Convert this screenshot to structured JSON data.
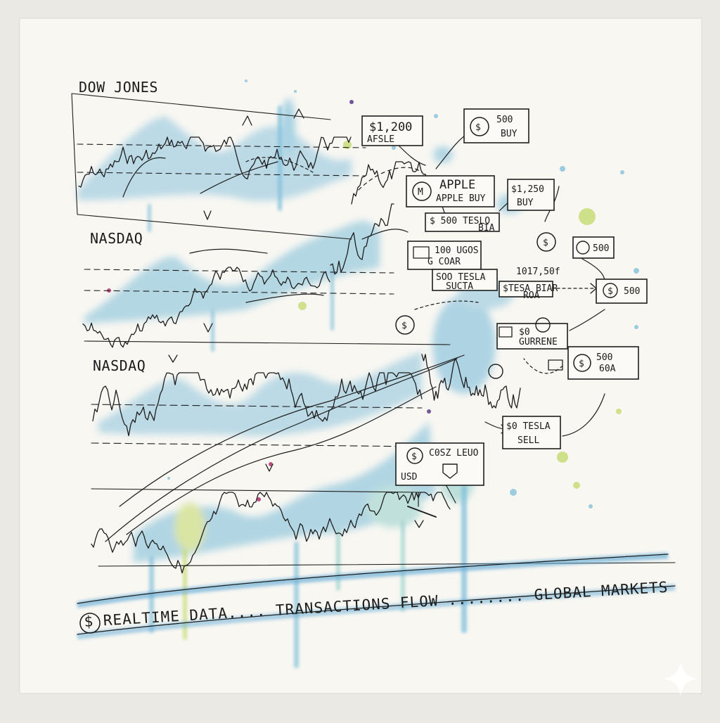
{
  "charts": {
    "top_label": "DOW JONES",
    "middle_label": "NASDAQ",
    "bottom_label": "NASDAQ"
  },
  "notes": [
    {
      "id": "n1",
      "lines": [
        "$1,200",
        "AFSLE"
      ]
    },
    {
      "id": "n2",
      "lines": [
        "500",
        "BUY"
      ]
    },
    {
      "id": "n3",
      "lines": [
        "APPLE",
        "APPLE BUY"
      ]
    },
    {
      "id": "n4",
      "lines": [
        "$1,250",
        "BUY"
      ]
    },
    {
      "id": "n5",
      "lines": [
        "$ 500 TESLO",
        "BIA"
      ]
    },
    {
      "id": "n6",
      "lines": [
        "100 UGOS",
        "G COAR"
      ]
    },
    {
      "id": "n7",
      "lines": [
        "SOO TESLA",
        "SUCTA"
      ]
    },
    {
      "id": "n8",
      "lines": [
        "$TESA BIAR",
        "ROA"
      ]
    },
    {
      "id": "n9",
      "lines": [
        "500"
      ]
    },
    {
      "id": "n10",
      "lines": [
        "500"
      ]
    },
    {
      "id": "n11",
      "lines": [
        "$0",
        "GURRENE"
      ]
    },
    {
      "id": "n12",
      "lines": [
        "500",
        "60A"
      ]
    },
    {
      "id": "n13",
      "lines": [
        "$0 TESLA",
        "SELL"
      ]
    },
    {
      "id": "n14",
      "lines": [
        "C0SZ LEUO",
        "USD"
      ]
    },
    {
      "id": "n15",
      "lines": [
        "1017,50f"
      ]
    }
  ],
  "banner": {
    "bottom": "$ REALTIME DATA.... TRANSACTIONS FLOW ........ GLOBAL MARKETS"
  },
  "icons": [
    "dollar-coin-icon",
    "arrow-icon",
    "sparkle-icon"
  ],
  "colors": {
    "paper": "#f8f7f2",
    "ink": "#1e1e1e",
    "watercolor_blue": "#8cc4dc",
    "watercolor_teal": "#9fd3cf",
    "watercolor_green": "#c9dc7a",
    "accent_pink": "#b0306a",
    "accent_purple": "#5a3b8a"
  }
}
